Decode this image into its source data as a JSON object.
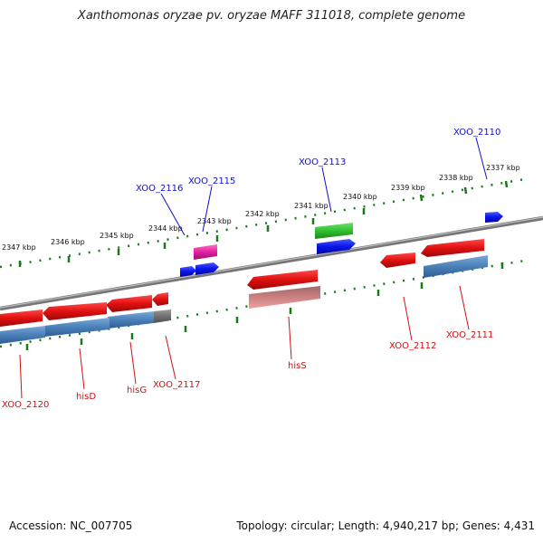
{
  "header": {
    "title": "Xanthomonas oryzae pv. oryzae MAFF 311018, complete genome"
  },
  "footer": {
    "accession": "Accession: NC_007705",
    "summary": "Topology: circular; Length: 4,940,217 bp; Genes: 4,431"
  },
  "ruler": {
    "ticks": [
      "2337 kbp",
      "2338 kbp",
      "2339 kbp",
      "2340 kbp",
      "2341 kbp",
      "2342 kbp",
      "2343 kbp",
      "2344 kbp",
      "2345 kbp",
      "2346 kbp",
      "2347 kbp"
    ]
  },
  "genes": {
    "top_labels": [
      "XOO_2110",
      "XOO_2113",
      "XOO_2115",
      "XOO_2116"
    ],
    "bottom_labels": [
      "XOO_2111",
      "XOO_2112",
      "hisS",
      "XOO_2117",
      "hisG",
      "hisD",
      "XOO_2120"
    ]
  },
  "colors": {
    "gene_red": "#e01010",
    "cds_blue": "#4a80b8",
    "gene_blue": "#0a14e8",
    "gene_green": "#30c030",
    "gene_magenta": "#e020a0",
    "backbone": "#888888",
    "tick_green": "#1a7a1a"
  }
}
